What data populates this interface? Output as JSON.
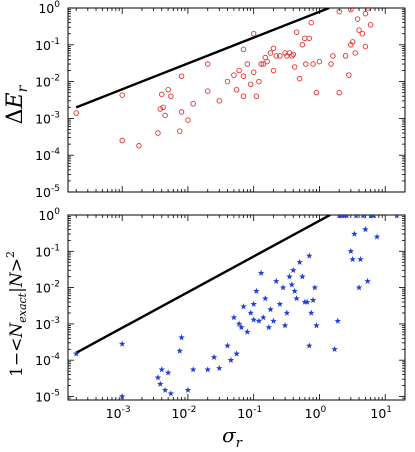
{
  "chart_data": [
    {
      "type": "scatter",
      "panel": "top",
      "xlabel": "",
      "ylabel": "ΔE_r",
      "xscale": "log",
      "yscale": "log",
      "xlim": [
        0.00015,
        20
      ],
      "ylim": [
        1e-05,
        1
      ],
      "y_ticks": [
        {
          "base": "10",
          "exp": "-5"
        },
        {
          "base": "10",
          "exp": "-4"
        },
        {
          "base": "10",
          "exp": "-3"
        },
        {
          "base": "10",
          "exp": "-2"
        },
        {
          "base": "10",
          "exp": "-1"
        },
        {
          "base": "10",
          "exp": "0"
        }
      ],
      "y_tick_values": [
        1e-05,
        0.0001,
        0.001,
        0.01,
        0.1,
        1
      ],
      "marker": "open-circle",
      "marker_color": "#e8312b",
      "reference_line": {
        "color": "#000000",
        "x": [
          0.0002,
          1.4
        ],
        "y": [
          0.002,
          1.0
        ]
      },
      "points": [
        [
          0.0002,
          0.0014
        ],
        [
          0.001,
          0.0043
        ],
        [
          0.001,
          0.00025
        ],
        [
          0.0018,
          0.00018
        ],
        [
          0.0035,
          0.0004
        ],
        [
          0.0038,
          0.0018
        ],
        [
          0.004,
          0.0045
        ],
        [
          0.0042,
          0.002
        ],
        [
          0.0045,
          0.0012
        ],
        [
          0.005,
          0.006
        ],
        [
          0.0055,
          0.004
        ],
        [
          0.0075,
          0.00045
        ],
        [
          0.008,
          0.0015
        ],
        [
          0.008,
          0.014
        ],
        [
          0.01,
          0.0009
        ],
        [
          0.012,
          0.0025
        ],
        [
          0.02,
          0.0055
        ],
        [
          0.02,
          0.03
        ],
        [
          0.03,
          0.003
        ],
        [
          0.04,
          0.01
        ],
        [
          0.05,
          0.015
        ],
        [
          0.055,
          0.006
        ],
        [
          0.06,
          0.02
        ],
        [
          0.07,
          0.004
        ],
        [
          0.07,
          0.014
        ],
        [
          0.07,
          0.075
        ],
        [
          0.08,
          0.03
        ],
        [
          0.09,
          0.0085
        ],
        [
          0.1,
          0.018
        ],
        [
          0.1,
          0.2
        ],
        [
          0.11,
          0.004
        ],
        [
          0.12,
          0.01
        ],
        [
          0.13,
          0.03
        ],
        [
          0.14,
          0.03
        ],
        [
          0.15,
          0.045
        ],
        [
          0.16,
          0.035
        ],
        [
          0.18,
          0.06
        ],
        [
          0.2,
          0.02
        ],
        [
          0.2,
          0.08
        ],
        [
          0.22,
          0.05
        ],
        [
          0.25,
          0.05
        ],
        [
          0.3,
          0.06
        ],
        [
          0.32,
          0.05
        ],
        [
          0.35,
          0.06
        ],
        [
          0.38,
          0.05
        ],
        [
          0.4,
          0.055
        ],
        [
          0.42,
          0.025
        ],
        [
          0.45,
          0.22
        ],
        [
          0.5,
          0.012
        ],
        [
          0.55,
          0.1
        ],
        [
          0.6,
          0.15
        ],
        [
          0.62,
          0.03
        ],
        [
          0.7,
          0.15
        ],
        [
          0.75,
          0.4
        ],
        [
          0.8,
          0.03
        ],
        [
          0.9,
          0.005
        ],
        [
          1.0,
          0.035
        ],
        [
          1.5,
          0.03
        ],
        [
          1.6,
          0.05
        ],
        [
          2.0,
          0.005
        ],
        [
          2.5,
          0.05
        ],
        [
          2.8,
          0.015
        ],
        [
          3.0,
          0.1
        ],
        [
          3.2,
          0.12
        ],
        [
          3.5,
          0.06
        ],
        [
          3.8,
          0.5
        ],
        [
          4.0,
          0.25
        ],
        [
          4.5,
          0.2
        ],
        [
          5.0,
          0.09
        ],
        [
          5.0,
          0.7
        ],
        [
          5.5,
          1.0
        ],
        [
          6.0,
          0.35
        ],
        [
          2.0,
          0.8
        ],
        [
          3.0,
          0.9
        ]
      ]
    },
    {
      "type": "scatter",
      "panel": "bottom",
      "xlabel": "σ_r",
      "ylabel": "1−<N_exact|N>^2",
      "xscale": "log",
      "yscale": "log",
      "xlim": [
        0.00015,
        20
      ],
      "ylim": [
        8e-06,
        1
      ],
      "x_ticks": [
        {
          "base": "10",
          "exp": "-3"
        },
        {
          "base": "10",
          "exp": "-2"
        },
        {
          "base": "10",
          "exp": "-1"
        },
        {
          "base": "10",
          "exp": "0"
        },
        {
          "base": "10",
          "exp": "1"
        }
      ],
      "x_tick_values": [
        0.001,
        0.01,
        0.1,
        1,
        10
      ],
      "y_ticks": [
        {
          "base": "10",
          "exp": "-5"
        },
        {
          "base": "10",
          "exp": "-4"
        },
        {
          "base": "10",
          "exp": "-3"
        },
        {
          "base": "10",
          "exp": "-2"
        },
        {
          "base": "10",
          "exp": "-1"
        },
        {
          "base": "10",
          "exp": "0"
        }
      ],
      "y_tick_values": [
        1e-05,
        0.0001,
        0.001,
        0.01,
        0.1,
        1
      ],
      "marker": "star",
      "marker_color": "#1f3fd6",
      "reference_line": {
        "color": "#000000",
        "x": [
          0.0002,
          1.45
        ],
        "y": [
          0.00016,
          1.0
        ]
      },
      "points": [
        [
          0.0002,
          0.00015
        ],
        [
          0.001,
          0.00028
        ],
        [
          0.001,
          1e-05
        ],
        [
          0.0035,
          3.3e-05
        ],
        [
          0.0038,
          2.2e-05
        ],
        [
          0.004,
          5.5e-05
        ],
        [
          0.0045,
          1.5e-05
        ],
        [
          0.005,
          4.5e-05
        ],
        [
          0.0055,
          1.2e-05
        ],
        [
          0.0075,
          0.00018
        ],
        [
          0.008,
          0.00042
        ],
        [
          0.01,
          1.5e-05
        ],
        [
          0.012,
          5.5e-05
        ],
        [
          0.02,
          5.5e-05
        ],
        [
          0.025,
          0.00012
        ],
        [
          0.03,
          6e-05
        ],
        [
          0.04,
          0.00025
        ],
        [
          0.045,
          0.0001
        ],
        [
          0.05,
          0.0015
        ],
        [
          0.055,
          0.00015
        ],
        [
          0.06,
          0.001
        ],
        [
          0.065,
          0.0008
        ],
        [
          0.07,
          0.003
        ],
        [
          0.08,
          0.0006
        ],
        [
          0.09,
          0.002
        ],
        [
          0.1,
          0.0035
        ],
        [
          0.1,
          0.0013
        ],
        [
          0.11,
          0.008
        ],
        [
          0.12,
          0.0012
        ],
        [
          0.13,
          0.025
        ],
        [
          0.14,
          0.0015
        ],
        [
          0.15,
          0.005
        ],
        [
          0.17,
          0.0008
        ],
        [
          0.18,
          0.0025
        ],
        [
          0.2,
          0.0012
        ],
        [
          0.22,
          0.015
        ],
        [
          0.25,
          0.0035
        ],
        [
          0.28,
          0.01
        ],
        [
          0.3,
          0.0009
        ],
        [
          0.32,
          0.002
        ],
        [
          0.35,
          0.02
        ],
        [
          0.38,
          0.012
        ],
        [
          0.4,
          0.03
        ],
        [
          0.42,
          0.008
        ],
        [
          0.45,
          0.005
        ],
        [
          0.5,
          0.05
        ],
        [
          0.55,
          0.02
        ],
        [
          0.6,
          0.004
        ],
        [
          0.65,
          0.004
        ],
        [
          0.7,
          0.075
        ],
        [
          0.75,
          0.002
        ],
        [
          0.8,
          0.0045
        ],
        [
          0.85,
          0.01
        ],
        [
          0.9,
          0.0009
        ],
        [
          0.7,
          0.00025
        ],
        [
          1.7,
          0.0002
        ],
        [
          1.9,
          0.0012
        ],
        [
          2.0,
          0.95
        ],
        [
          2.2,
          0.95
        ],
        [
          2.4,
          0.95
        ],
        [
          2.6,
          0.95
        ],
        [
          3.0,
          0.1
        ],
        [
          3.2,
          0.06
        ],
        [
          3.4,
          0.3
        ],
        [
          3.6,
          0.95
        ],
        [
          4.0,
          0.01
        ],
        [
          4.2,
          0.06
        ],
        [
          4.6,
          0.95
        ],
        [
          5.0,
          0.4
        ],
        [
          5.4,
          0.015
        ],
        [
          6.0,
          0.95
        ],
        [
          6.6,
          0.95
        ],
        [
          7.5,
          0.25
        ],
        [
          15.0,
          0.95
        ]
      ]
    }
  ]
}
